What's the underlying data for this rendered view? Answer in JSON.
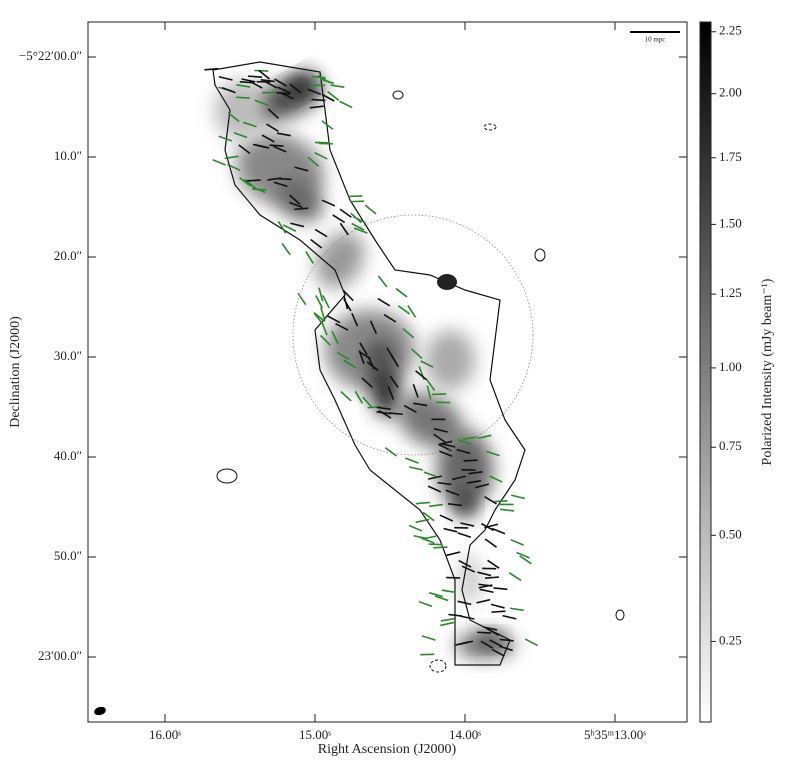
{
  "chart_data": {
    "type": "image",
    "x_label": "Right Ascension (J2000)",
    "y_label": "Declination (J2000)",
    "colorbar_label": "Polarized Intensity (mJy beam⁻¹)",
    "scale_bar_label": "10 mpc",
    "xlim": [
      16.513,
      12.52
    ],
    "xticks": [
      {
        "value": 16,
        "label": "16.00ˢ"
      },
      {
        "value": 15,
        "label": "15.00ˢ"
      },
      {
        "value": 14,
        "label": "14.00ˢ"
      },
      {
        "value": 13,
        "label": "5ʰ35ᵐ13.00ˢ"
      }
    ],
    "ylim": [
      66.5,
      -3.5
    ],
    "yticks": [
      {
        "value": 0,
        "label": "−5°22′00.0″"
      },
      {
        "value": 10,
        "label": "10.0″"
      },
      {
        "value": 20,
        "label": "20.0″"
      },
      {
        "value": 30,
        "label": "30.0″"
      },
      {
        "value": 40,
        "label": "40.0″"
      },
      {
        "value": 50,
        "label": "50.0″"
      },
      {
        "value": 60,
        "label": "23′00.0″"
      }
    ],
    "clim": [
      0.129,
      2.29
    ],
    "colorbar_stretch_power": 0.75,
    "cmap": [
      "#ffffff",
      "#000000"
    ],
    "cticks": [
      0.25,
      {
        "value": 0.5,
        "label": "0.50"
      },
      0.75,
      {
        "value": 1,
        "label": "1.00"
      },
      1.25,
      {
        "value": 1.5,
        "label": "1.50"
      },
      1.75,
      {
        "value": 2,
        "label": "2.00"
      },
      2.25
    ]
  }
}
